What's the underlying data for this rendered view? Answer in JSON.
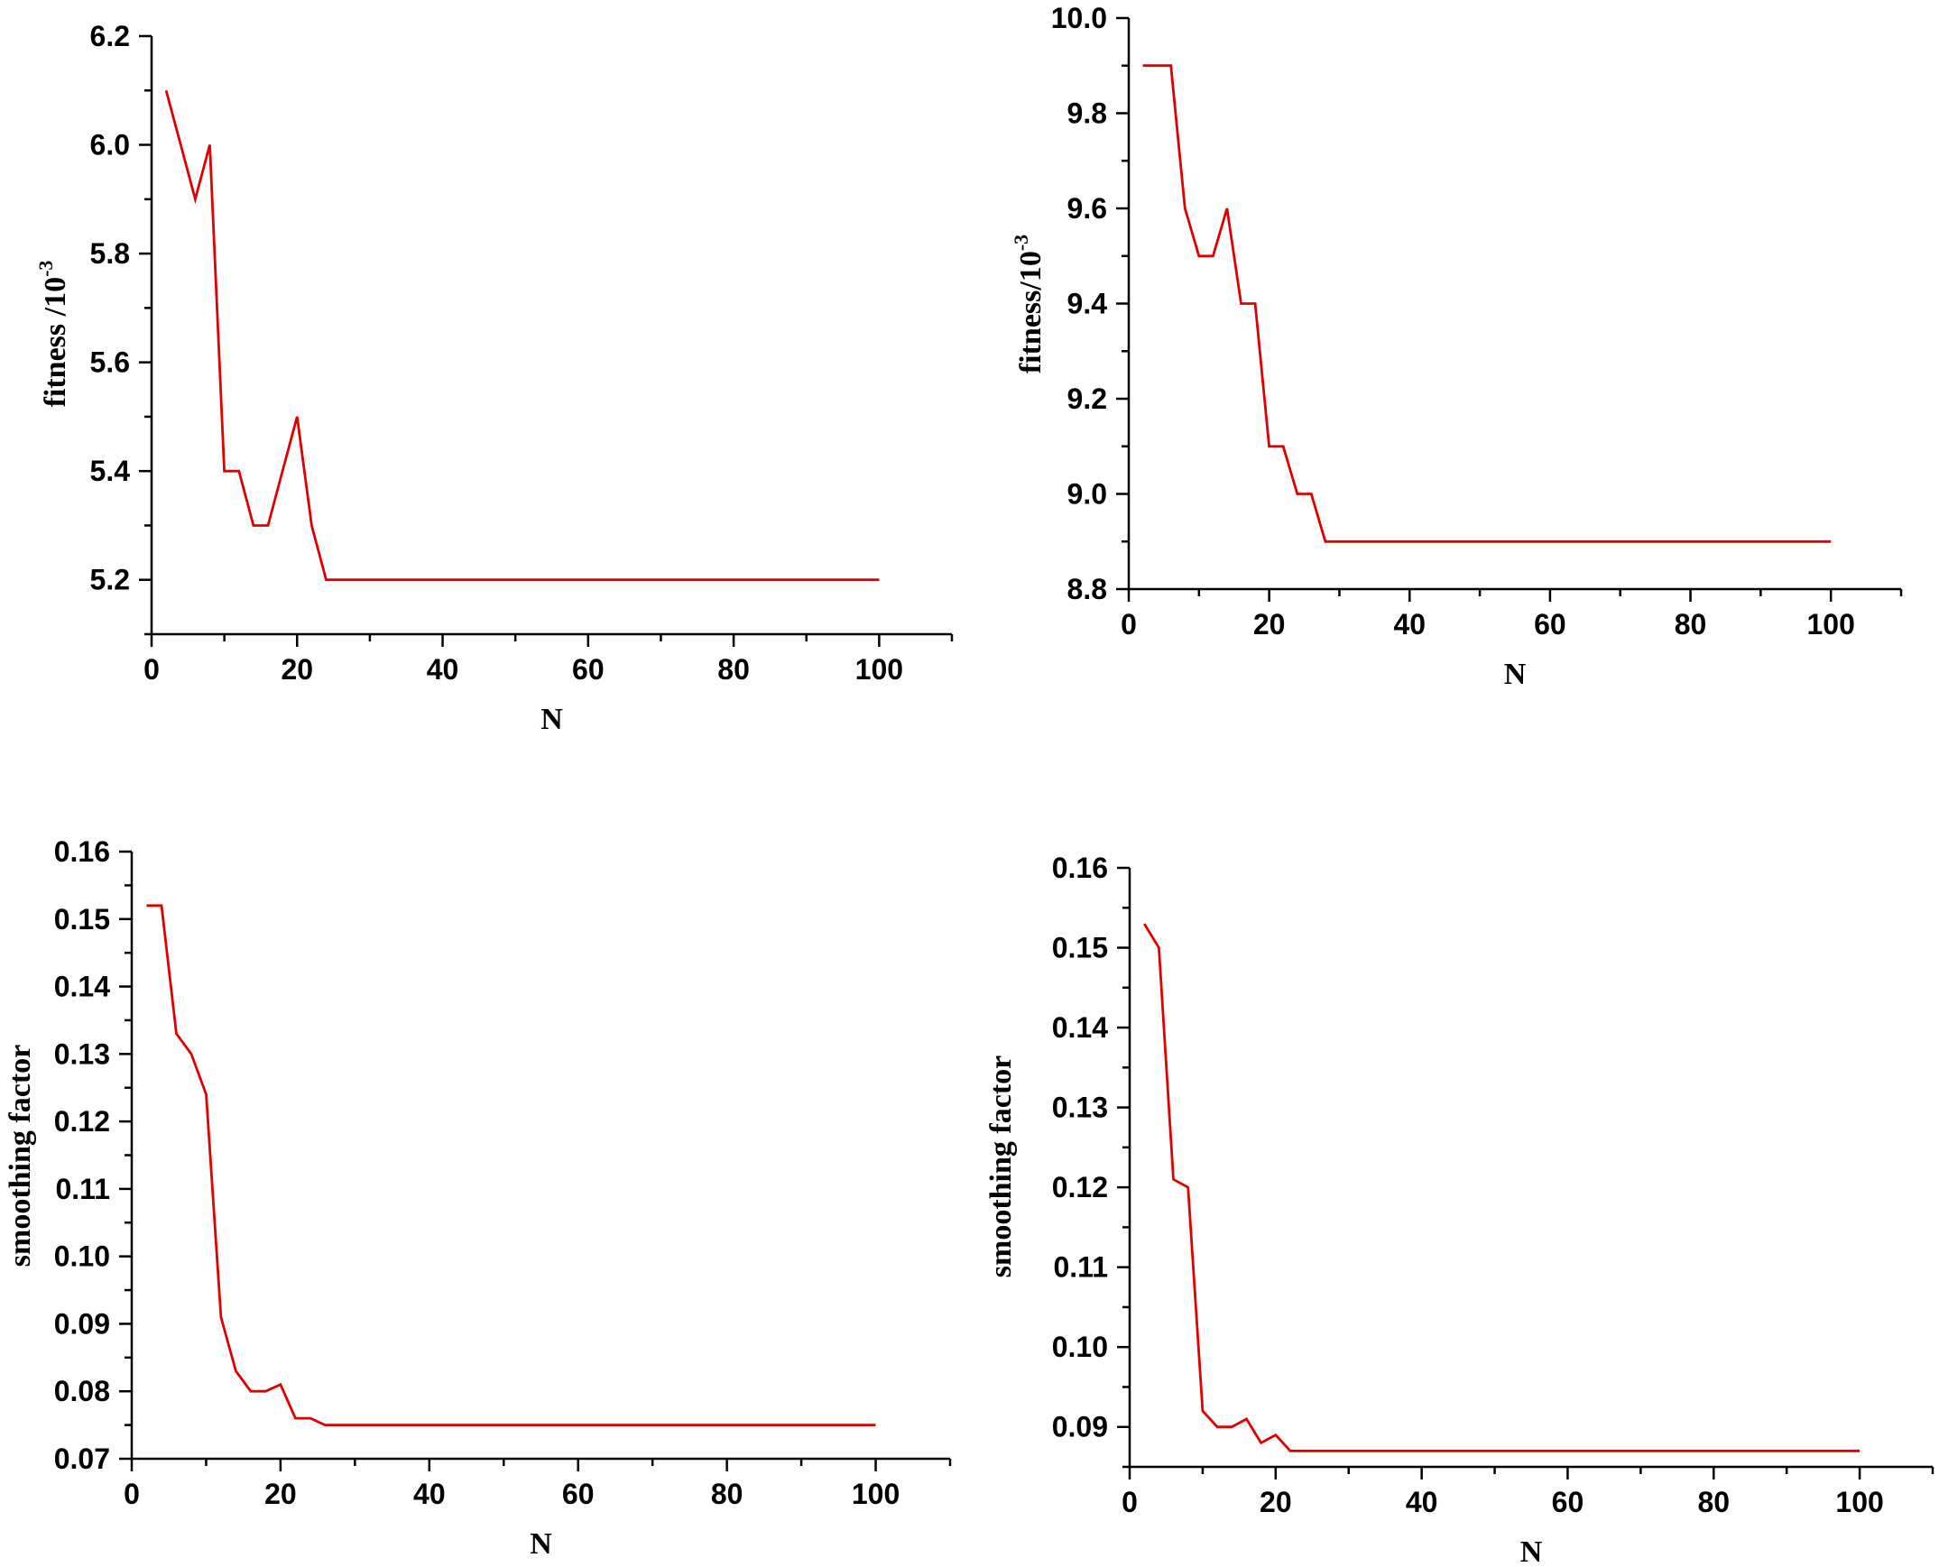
{
  "colors": {
    "series": "#e00000",
    "axis": "#000000"
  },
  "chart_data": [
    {
      "type": "line",
      "xlabel": "N",
      "ylabel": "fitness /10",
      "ylabel_sup": "-3",
      "xlim": [
        0,
        110
      ],
      "ylim": [
        5.1,
        6.2
      ],
      "x_ticks": [
        "0",
        "20",
        "40",
        "60",
        "80",
        "100"
      ],
      "y_ticks": [
        "5.2",
        "5.4",
        "5.6",
        "5.8",
        "6.0",
        "6.2"
      ],
      "x": [
        2,
        4,
        6,
        8,
        10,
        12,
        14,
        16,
        18,
        20,
        22,
        24,
        26,
        100
      ],
      "series": [
        {
          "values": [
            6.1,
            6.0,
            5.9,
            6.0,
            5.4,
            5.4,
            5.3,
            5.3,
            5.4,
            5.5,
            5.3,
            5.2,
            5.2,
            5.2
          ]
        }
      ]
    },
    {
      "type": "line",
      "xlabel": "N",
      "ylabel": "fitness/10",
      "ylabel_sup": "-3",
      "xlim": [
        0,
        110
      ],
      "ylim": [
        8.8,
        10.0
      ],
      "x_ticks": [
        "0",
        "20",
        "40",
        "60",
        "80",
        "100"
      ],
      "y_ticks": [
        "8.8",
        "9.0",
        "9.2",
        "9.4",
        "9.6",
        "9.8",
        "10.0"
      ],
      "x": [
        2,
        4,
        6,
        8,
        10,
        12,
        14,
        16,
        18,
        20,
        22,
        24,
        26,
        28,
        100
      ],
      "series": [
        {
          "values": [
            9.9,
            9.9,
            9.9,
            9.6,
            9.5,
            9.5,
            9.6,
            9.4,
            9.4,
            9.1,
            9.1,
            9.0,
            9.0,
            8.9,
            8.9
          ]
        }
      ]
    },
    {
      "type": "line",
      "xlabel": "N",
      "ylabel": "smoothing factor",
      "ylabel_sup": "",
      "xlim": [
        0,
        110
      ],
      "ylim": [
        0.07,
        0.16
      ],
      "x_ticks": [
        "0",
        "20",
        "40",
        "60",
        "80",
        "100"
      ],
      "y_ticks": [
        "0.07",
        "0.08",
        "0.09",
        "0.10",
        "0.11",
        "0.12",
        "0.13",
        "0.14",
        "0.15",
        "0.16"
      ],
      "x": [
        2,
        4,
        6,
        8,
        10,
        12,
        14,
        16,
        18,
        20,
        22,
        24,
        26,
        100
      ],
      "series": [
        {
          "values": [
            0.152,
            0.152,
            0.133,
            0.13,
            0.124,
            0.091,
            0.083,
            0.08,
            0.08,
            0.081,
            0.076,
            0.076,
            0.075,
            0.075
          ]
        }
      ]
    },
    {
      "type": "line",
      "xlabel": "N",
      "ylabel": "smoothing factor",
      "ylabel_sup": "",
      "xlim": [
        0,
        110
      ],
      "ylim": [
        0.085,
        0.16
      ],
      "x_ticks": [
        "0",
        "20",
        "40",
        "60",
        "80",
        "100"
      ],
      "y_ticks": [
        "0.09",
        "0.10",
        "0.11",
        "0.12",
        "0.13",
        "0.14",
        "0.15",
        "0.16"
      ],
      "x": [
        2,
        4,
        6,
        8,
        10,
        12,
        14,
        16,
        18,
        20,
        22,
        100
      ],
      "series": [
        {
          "values": [
            0.153,
            0.15,
            0.121,
            0.12,
            0.092,
            0.09,
            0.09,
            0.091,
            0.088,
            0.089,
            0.087,
            0.087
          ]
        }
      ]
    }
  ]
}
